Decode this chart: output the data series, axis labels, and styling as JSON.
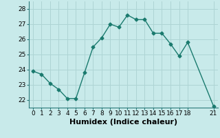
{
  "x": [
    0,
    1,
    2,
    3,
    4,
    5,
    6,
    7,
    8,
    9,
    10,
    11,
    12,
    13,
    14,
    15,
    16,
    17,
    18,
    21
  ],
  "y": [
    23.9,
    23.7,
    23.1,
    22.7,
    22.1,
    22.1,
    23.8,
    25.5,
    26.1,
    27.0,
    26.8,
    27.6,
    27.3,
    27.3,
    26.4,
    26.4,
    25.7,
    24.9,
    25.8,
    21.6
  ],
  "line_color": "#1a7a6e",
  "marker": "D",
  "marker_size": 2.5,
  "bg_color": "#c8eaea",
  "grid_color": "#aed4d4",
  "xlabel": "Humidex (Indice chaleur)",
  "xlim": [
    -0.5,
    21.5
  ],
  "ylim": [
    21.5,
    28.5
  ],
  "yticks": [
    22,
    23,
    24,
    25,
    26,
    27,
    28
  ],
  "xticks": [
    0,
    1,
    2,
    3,
    4,
    5,
    6,
    7,
    8,
    9,
    10,
    11,
    12,
    13,
    14,
    15,
    16,
    17,
    18,
    21
  ],
  "tick_fontsize": 6.5,
  "xlabel_fontsize": 8,
  "spine_color": "#2a7a7a"
}
